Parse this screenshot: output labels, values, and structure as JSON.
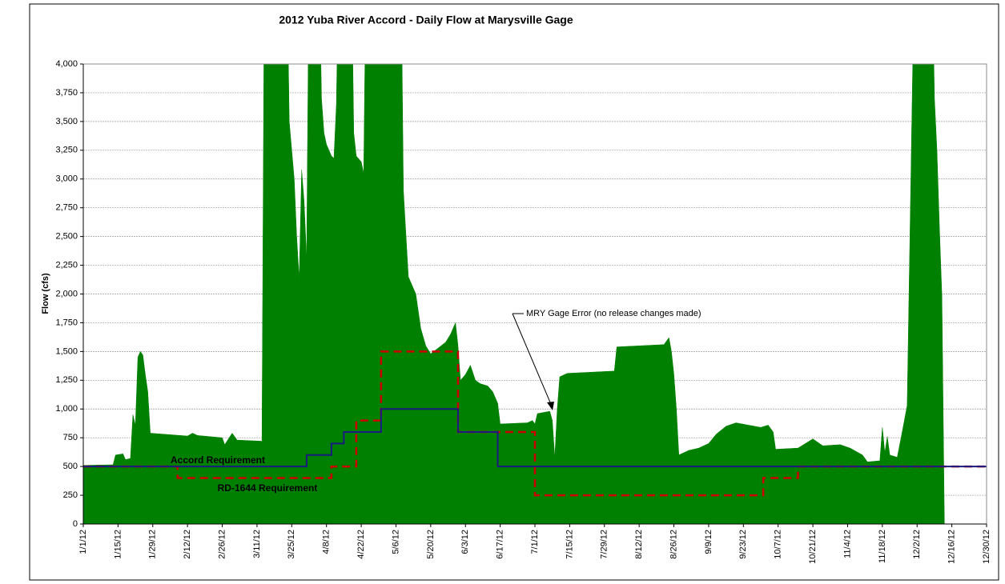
{
  "chart_data": {
    "type": "area",
    "title": "2012 Yuba River Accord - Daily Flow at Marysville Gage",
    "ylabel": "Flow (cfs)",
    "xlim": [
      "1/1/12",
      "12/30/12"
    ],
    "xticks": [
      "1/1/12",
      "1/15/12",
      "1/29/12",
      "2/12/12",
      "2/26/12",
      "3/11/12",
      "3/25/12",
      "4/8/12",
      "4/22/12",
      "5/6/12",
      "5/20/12",
      "6/3/12",
      "6/17/12",
      "7/1/12",
      "7/15/12",
      "7/29/12",
      "8/12/12",
      "8/26/12",
      "9/9/12",
      "9/23/12",
      "10/7/12",
      "10/21/12",
      "11/4/12",
      "11/18/12",
      "12/2/12",
      "12/16/12",
      "12/30/12"
    ],
    "ylim": [
      0,
      4000
    ],
    "yticks": [
      0,
      250,
      500,
      750,
      {
        "value": 1000,
        "label": "1,000"
      },
      {
        "value": 1250,
        "label": "1,250"
      },
      {
        "value": 1500,
        "label": "1,500"
      },
      {
        "value": 1750,
        "label": "1,750"
      },
      {
        "value": 2000,
        "label": "2,000"
      },
      {
        "value": 2250,
        "label": "2,250"
      },
      {
        "value": 2500,
        "label": "2,500"
      },
      {
        "value": 2750,
        "label": "2,750"
      },
      {
        "value": 3000,
        "label": "3,000"
      },
      {
        "value": 3250,
        "label": "3,250"
      },
      {
        "value": 3500,
        "label": "3,500"
      },
      {
        "value": 3750,
        "label": "3,750"
      },
      {
        "value": 4000,
        "label": "4,000"
      }
    ],
    "grid": true,
    "series": [
      {
        "kind": "area",
        "color": "#008000",
        "x": [
          "1/1/12",
          "1/13/12",
          "1/14/12",
          "1/17/12",
          "1/18/12",
          "1/20/12",
          "1/21/12",
          "1/22/12",
          "1/23/12",
          "1/24/12",
          "1/25/12",
          "1/26/12",
          "1/27/12",
          "1/28/12",
          "2/12/12",
          "2/14/12",
          "2/16/12",
          "2/26/12",
          "2/27/12",
          "3/1/12",
          "3/3/12",
          "3/13/12",
          "3/14/12",
          "3/23/12",
          "3/24/12",
          "3/25/12",
          "3/26/12",
          "3/27/12",
          "3/28/12",
          "3/29/12",
          "3/30/12",
          "3/31/12",
          "4/1/12",
          "4/5/12",
          "4/6/12",
          "4/7/12",
          "4/8/12",
          "4/10/12",
          "4/11/12",
          "4/12/12",
          "4/13/12",
          "4/18/12",
          "4/19/12",
          "4/20/12",
          "4/22/12",
          "4/23/12",
          "4/24/12",
          "5/8/12",
          "5/9/12",
          "5/11/12",
          "5/12/12",
          "5/14/12",
          "5/16/12",
          "5/18/12",
          "5/20/12",
          "5/23/12",
          "5/26/12",
          "5/28/12",
          "5/30/12",
          "5/31/12",
          "6/1/12",
          "6/3/12",
          "6/5/12",
          "6/7/12",
          "6/9/12",
          "6/12/12",
          "6/14/12",
          "6/16/12",
          "6/17/12",
          "6/28/12",
          "6/30/12",
          "7/1/12",
          "7/2/12",
          "7/7/12",
          "7/8/12",
          "7/9/12",
          "7/10/12",
          "7/11/12",
          "7/14/12",
          "8/2/12",
          "8/3/12",
          "8/22/12",
          "8/24/12",
          "8/25/12",
          "8/26/12",
          "8/27/12",
          "8/28/12",
          "9/1/12",
          "9/5/12",
          "9/9/12",
          "9/12/12",
          "9/16/12",
          "9/20/12",
          "9/25/12",
          "9/30/12",
          "10/3/12",
          "10/5/12",
          "10/6/12",
          "10/15/12",
          "10/21/12",
          "10/25/12",
          "11/1/12",
          "11/5/12",
          "11/10/12",
          "11/12/12",
          "11/17/12",
          "11/18/12",
          "11/19/12",
          "11/20/12",
          "11/21/12",
          "11/24/12",
          "11/26/12",
          "11/28/12",
          "12/1/12",
          "12/8/12",
          "12/9/12",
          "12/10/12",
          "12/11/12",
          "12/12/12",
          "12/13/12"
        ],
        "values": [
          510,
          515,
          600,
          610,
          560,
          570,
          950,
          860,
          1450,
          1500,
          1470,
          1300,
          1150,
          790,
          765,
          790,
          770,
          750,
          690,
          790,
          730,
          720,
          5000,
          5000,
          3500,
          3250,
          3000,
          2500,
          2130,
          3080,
          2800,
          2300,
          5000,
          5000,
          3700,
          3400,
          3300,
          3200,
          3180,
          3650,
          5000,
          5000,
          3400,
          3200,
          3150,
          3050,
          5000,
          5000,
          2900,
          2150,
          2100,
          2000,
          1700,
          1550,
          1480,
          1530,
          1580,
          1650,
          1750,
          1550,
          1250,
          1300,
          1380,
          1250,
          1220,
          1200,
          1150,
          1050,
          870,
          880,
          900,
          870,
          960,
          980,
          900,
          580,
          1000,
          1280,
          1310,
          1330,
          1540,
          1560,
          1620,
          1500,
          1300,
          1000,
          600,
          640,
          660,
          700,
          780,
          850,
          880,
          860,
          840,
          860,
          800,
          650,
          660,
          740,
          680,
          690,
          660,
          600,
          540,
          550,
          840,
          620,
          760,
          600,
          580,
          800,
          1030,
          5000,
          5000,
          3700,
          3250,
          2580,
          1980,
          0
        ]
      },
      {
        "kind": "step",
        "name": "RD-1644 Requirement",
        "color": "#cc0000",
        "dashed": true,
        "x": [
          "1/1/12",
          "2/8/12",
          "4/10/12",
          "4/20/12",
          "4/30/12",
          "5/31/12",
          "7/1/12",
          "10/1/12",
          "10/15/12",
          "12/30/12"
        ],
        "values": [
          500,
          400,
          500,
          900,
          1500,
          800,
          250,
          400,
          500,
          500
        ]
      },
      {
        "kind": "step",
        "name": "Accord Requirement",
        "color": "#1a1a80",
        "dashed": false,
        "x": [
          "1/1/12",
          "3/31/12",
          "4/10/12",
          "4/15/12",
          "4/30/12",
          "5/31/12",
          "6/16/12",
          "12/30/12"
        ],
        "values": [
          500,
          600,
          700,
          800,
          1000,
          800,
          500,
          500
        ]
      }
    ],
    "annotation": "MRY Gage Error (no release changes made)"
  }
}
